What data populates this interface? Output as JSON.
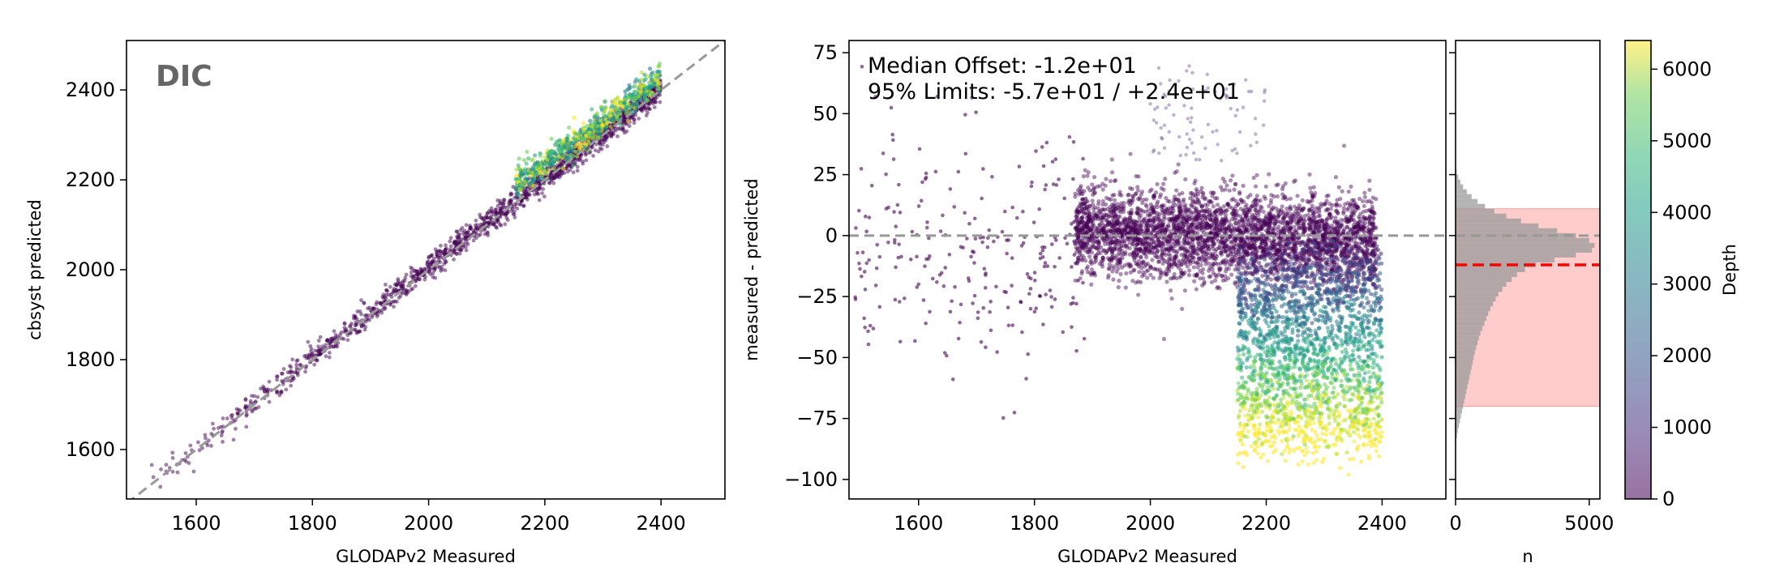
{
  "chart_data": [
    {
      "type": "scatter",
      "panel_label": "DIC",
      "xlabel": "GLODAPv2 Measured",
      "ylabel": "cbsyst predicted",
      "xlim": [
        1480,
        2510
      ],
      "ylim": [
        1490,
        2510
      ],
      "xticks": [
        1600,
        1800,
        2000,
        2200,
        2400
      ],
      "yticks": [
        1600,
        1800,
        2000,
        2200,
        2400
      ],
      "reference_line": "1:1",
      "reference_color": "#999999",
      "color_by": "Depth",
      "shallow_band": {
        "x": [
          1500,
          2400
        ],
        "offset": 4,
        "spread": 14
      },
      "deep_cluster": {
        "x": [
          2150,
          2400
        ],
        "offset_at_start": 40,
        "offset_at_end": 25,
        "spread": 16
      }
    },
    {
      "type": "scatter",
      "xlabel": "GLODAPv2 Measured",
      "ylabel": "measured - predicted",
      "xlim": [
        1480,
        2510
      ],
      "ylim": [
        -108,
        80
      ],
      "xticks": [
        1600,
        1800,
        2000,
        2200,
        2400
      ],
      "yticks": [
        -100,
        -75,
        -50,
        -25,
        0,
        25,
        50,
        75
      ],
      "zero_line_color": "#999999",
      "annotations": [
        "Median Offset: -1.2e+01",
        "95% Limits: -5.7e+01 / +2.4e+01"
      ]
    },
    {
      "type": "histogram",
      "orientation": "horizontal",
      "xlabel": "n",
      "xlim": [
        0,
        5400
      ],
      "xticks": [
        0,
        5000
      ],
      "ylim": [
        -108,
        80
      ],
      "median": -12,
      "limits": [
        -70,
        11
      ],
      "median_color": "#ff0000",
      "limits_fill": "#ffcccc",
      "bar_color": "#9a9a9a",
      "bins": [
        {
          "y": 26,
          "n": 40
        },
        {
          "y": 24,
          "n": 100
        },
        {
          "y": 22,
          "n": 180
        },
        {
          "y": 20,
          "n": 280
        },
        {
          "y": 18,
          "n": 420
        },
        {
          "y": 16,
          "n": 600
        },
        {
          "y": 14,
          "n": 820
        },
        {
          "y": 12,
          "n": 1100
        },
        {
          "y": 10,
          "n": 1450
        },
        {
          "y": 8,
          "n": 1900
        },
        {
          "y": 6,
          "n": 2450
        },
        {
          "y": 4,
          "n": 3100
        },
        {
          "y": 2,
          "n": 3800
        },
        {
          "y": 0,
          "n": 4500
        },
        {
          "y": -2,
          "n": 5000
        },
        {
          "y": -4,
          "n": 5200
        },
        {
          "y": -6,
          "n": 5100
        },
        {
          "y": -8,
          "n": 4500
        },
        {
          "y": -10,
          "n": 3700
        },
        {
          "y": -12,
          "n": 3000
        },
        {
          "y": -14,
          "n": 2600
        },
        {
          "y": -16,
          "n": 2300
        },
        {
          "y": -18,
          "n": 2100
        },
        {
          "y": -20,
          "n": 1900
        },
        {
          "y": -22,
          "n": 1750
        },
        {
          "y": -24,
          "n": 1600
        },
        {
          "y": -26,
          "n": 1500
        },
        {
          "y": -28,
          "n": 1400
        },
        {
          "y": -30,
          "n": 1300
        },
        {
          "y": -32,
          "n": 1220
        },
        {
          "y": -34,
          "n": 1150
        },
        {
          "y": -36,
          "n": 1080
        },
        {
          "y": -38,
          "n": 1000
        },
        {
          "y": -40,
          "n": 930
        },
        {
          "y": -42,
          "n": 870
        },
        {
          "y": -44,
          "n": 820
        },
        {
          "y": -46,
          "n": 770
        },
        {
          "y": -48,
          "n": 720
        },
        {
          "y": -50,
          "n": 680
        },
        {
          "y": -52,
          "n": 640
        },
        {
          "y": -54,
          "n": 600
        },
        {
          "y": -56,
          "n": 560
        },
        {
          "y": -58,
          "n": 520
        },
        {
          "y": -60,
          "n": 480
        },
        {
          "y": -62,
          "n": 440
        },
        {
          "y": -64,
          "n": 400
        },
        {
          "y": -66,
          "n": 360
        },
        {
          "y": -68,
          "n": 320
        },
        {
          "y": -70,
          "n": 280
        },
        {
          "y": -72,
          "n": 240
        },
        {
          "y": -74,
          "n": 200
        },
        {
          "y": -76,
          "n": 160
        },
        {
          "y": -78,
          "n": 120
        },
        {
          "y": -80,
          "n": 80
        },
        {
          "y": -82,
          "n": 50
        },
        {
          "y": -84,
          "n": 25
        }
      ]
    },
    {
      "type": "colorbar",
      "label": "Depth",
      "range": [
        0,
        6400
      ],
      "ticks": [
        0,
        1000,
        2000,
        3000,
        4000,
        5000,
        6000
      ],
      "colormap": "viridis"
    }
  ]
}
